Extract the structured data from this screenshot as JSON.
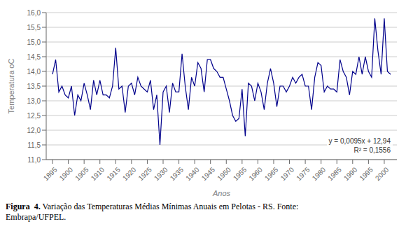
{
  "chart_data": {
    "type": "line",
    "xlabel": "Anos",
    "ylabel": "Temperatura oC",
    "x": [
      1895,
      1896,
      1897,
      1898,
      1899,
      1900,
      1901,
      1902,
      1903,
      1904,
      1905,
      1906,
      1907,
      1908,
      1909,
      1910,
      1911,
      1912,
      1913,
      1914,
      1915,
      1916,
      1917,
      1918,
      1919,
      1920,
      1921,
      1922,
      1923,
      1924,
      1925,
      1926,
      1927,
      1928,
      1929,
      1930,
      1931,
      1932,
      1933,
      1934,
      1935,
      1936,
      1937,
      1938,
      1939,
      1940,
      1941,
      1942,
      1943,
      1944,
      1945,
      1946,
      1947,
      1948,
      1949,
      1950,
      1951,
      1952,
      1953,
      1954,
      1955,
      1956,
      1957,
      1958,
      1959,
      1960,
      1961,
      1962,
      1963,
      1964,
      1965,
      1966,
      1967,
      1968,
      1969,
      1970,
      1971,
      1972,
      1973,
      1974,
      1975,
      1976,
      1977,
      1978,
      1979,
      1980,
      1981,
      1982,
      1983,
      1984,
      1985,
      1986,
      1987,
      1988,
      1989,
      1990,
      1991,
      1992,
      1993,
      1994,
      1995,
      1996,
      1997,
      1998,
      1999,
      2000,
      2001,
      2002
    ],
    "values": [
      13.9,
      14.4,
      13.3,
      13.5,
      13.2,
      13.1,
      13.5,
      12.5,
      13.2,
      13.0,
      13.6,
      13.2,
      12.7,
      13.7,
      13.2,
      13.7,
      13.2,
      13.2,
      13.1,
      13.5,
      14.8,
      13.4,
      13.5,
      12.6,
      13.5,
      13.6,
      13.2,
      13.8,
      13.5,
      13.4,
      13.3,
      13.7,
      12.7,
      13.2,
      11.5,
      13.3,
      13.5,
      12.6,
      13.6,
      13.3,
      13.3,
      14.6,
      13.5,
      12.7,
      13.8,
      13.5,
      14.3,
      14.1,
      13.3,
      14.4,
      14.4,
      14.1,
      14.0,
      13.8,
      13.8,
      13.4,
      13.0,
      12.5,
      12.3,
      12.4,
      13.4,
      11.8,
      13.6,
      13.5,
      13.0,
      13.6,
      13.3,
      12.7,
      13.6,
      14.1,
      13.6,
      12.8,
      13.5,
      13.5,
      13.3,
      13.5,
      13.8,
      13.6,
      13.8,
      13.9,
      13.5,
      13.5,
      12.7,
      13.8,
      14.3,
      14.2,
      13.3,
      13.5,
      13.4,
      13.4,
      13.3,
      14.4,
      14.0,
      13.8,
      13.2,
      14.0,
      13.9,
      14.5,
      13.9,
      14.5,
      14.0,
      13.8,
      15.8,
      14.7,
      13.9,
      15.8,
      14.0,
      13.9
    ],
    "color": "#00008B",
    "xlim": [
      1893,
      2004
    ],
    "xticks": [
      1895,
      1900,
      1905,
      1910,
      1915,
      1920,
      1925,
      1930,
      1935,
      1940,
      1945,
      1950,
      1955,
      1960,
      1965,
      1970,
      1975,
      1980,
      1985,
      1990,
      1995,
      2000
    ],
    "ylim": [
      11.0,
      16.0
    ],
    "yticks": [
      {
        "value": 11.0,
        "label": "11,0"
      },
      {
        "value": 11.5,
        "label": "11,5"
      },
      {
        "value": 12.0,
        "label": "12,0"
      },
      {
        "value": 12.5,
        "label": "12,5"
      },
      {
        "value": 13.0,
        "label": "13,0"
      },
      {
        "value": 13.5,
        "label": "13,5"
      },
      {
        "value": 14.0,
        "label": "14,0"
      },
      {
        "value": 14.5,
        "label": "14,5"
      },
      {
        "value": 15.0,
        "label": "15,0"
      },
      {
        "value": 15.5,
        "label": "15,5"
      },
      {
        "value": 16.0,
        "label": "16,0"
      }
    ],
    "grid": true,
    "annotations": [
      "y = 0,0095x + 12,94",
      "R² = 0,1556"
    ],
    "caption": [
      "Figura  4.",
      " Variação das Temperaturas Médias Mínimas Anuais em Pelotas - RS. Fonte:",
      "Embrapa/UFPEL."
    ]
  }
}
